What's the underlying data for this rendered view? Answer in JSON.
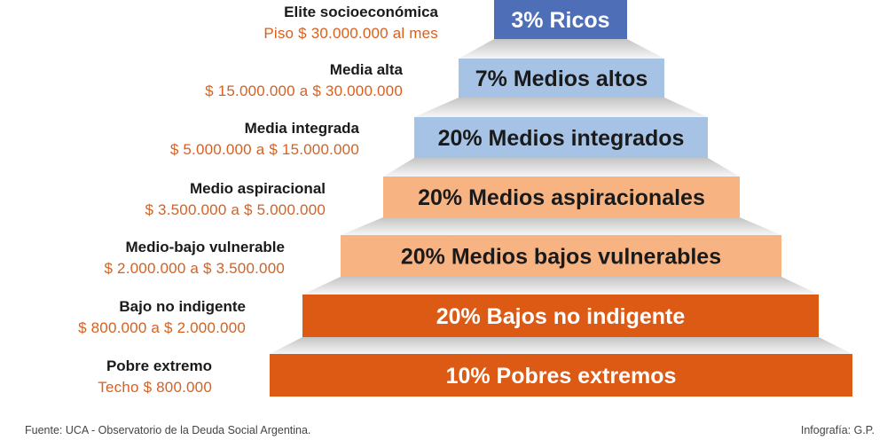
{
  "tiers": [
    {
      "bar_label": "3% Ricos",
      "name": "Elite socioeconómica",
      "income": "Piso $ 30.000.000 al mes",
      "color": "#4f6eb8",
      "text_color": "#ffffff"
    },
    {
      "bar_label": "7% Medios altos",
      "name": "Media alta",
      "income": "$ 15.000.000 a $ 30.000.000",
      "color": "#a6c3e6",
      "text_color": "#1a1a1a"
    },
    {
      "bar_label": "20% Medios integrados",
      "name": "Media integrada",
      "income": "$ 5.000.000 a $ 15.000.000",
      "color": "#a6c3e6",
      "text_color": "#1a1a1a"
    },
    {
      "bar_label": "20% Medios aspiracionales",
      "name": "Medio aspiracional",
      "income": "$ 3.500.000 a $ 5.000.000",
      "color": "#f7b482",
      "text_color": "#1a1a1a"
    },
    {
      "bar_label": "20% Medios bajos vulnerables",
      "name": "Medio-bajo vulnerable",
      "income": "$ 2.000.000 a $ 3.500.000",
      "color": "#f7b482",
      "text_color": "#1a1a1a"
    },
    {
      "bar_label": "20% Bajos no indigente",
      "name": "Bajo no indigente",
      "income": "$ 800.000 a $ 2.000.000",
      "color": "#dd5a15",
      "text_color": "#ffffff"
    },
    {
      "bar_label": "10% Pobres extremos",
      "name": "Pobre extremo",
      "income": "Techo $ 800.000",
      "color": "#dd5a15",
      "text_color": "#ffffff"
    }
  ],
  "footer": {
    "source": "Fuente: UCA - Observatorio de la Deuda Social Argentina.",
    "credit": "Infografía: G.P."
  }
}
